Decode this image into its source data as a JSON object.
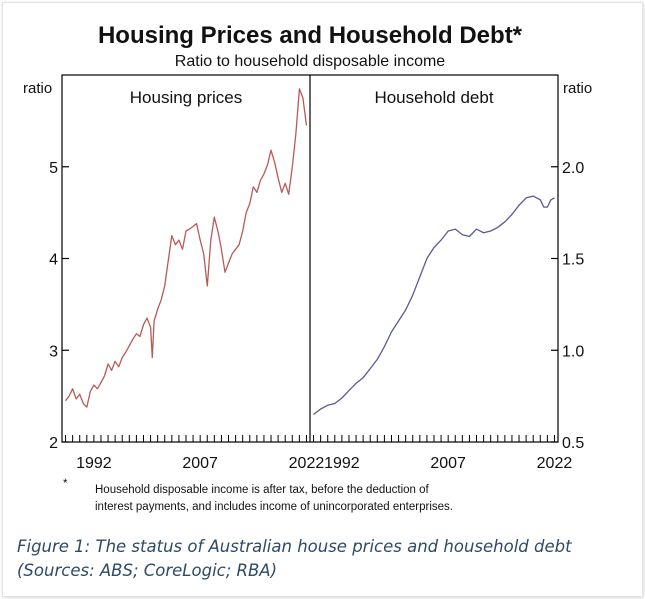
{
  "chart_data": {
    "type": "line",
    "title": "Housing Prices and Household Debt*",
    "subtitle": "Ratio to household disposable income",
    "axis_unit_left": "ratio",
    "axis_unit_right": "ratio",
    "grid": false,
    "panels": [
      {
        "label": "Housing prices",
        "ylim": [
          2,
          6
        ],
        "yticks": [
          "2",
          "3",
          "4",
          "5"
        ],
        "xlim": [
          1987.5,
          2022.5
        ],
        "xticks": [
          "1992",
          "2007",
          "2022"
        ],
        "series": [
          {
            "color": "#b85a58",
            "x": [
              1988.0,
              1988.5,
              1989.0,
              1989.5,
              1990.0,
              1990.5,
              1991.0,
              1991.5,
              1992.0,
              1992.5,
              1993.0,
              1993.5,
              1994.0,
              1994.5,
              1995.0,
              1995.5,
              1996.0,
              1996.5,
              1997.0,
              1997.5,
              1998.0,
              1998.5,
              1999.0,
              1999.5,
              2000.0,
              2000.25,
              2000.5,
              2001.0,
              2001.5,
              2002.0,
              2002.5,
              2003.0,
              2003.5,
              2004.0,
              2004.5,
              2005.0,
              2005.5,
              2006.0,
              2006.5,
              2007.0,
              2007.5,
              2008.0,
              2008.5,
              2009.0,
              2009.5,
              2010.0,
              2010.5,
              2011.0,
              2011.5,
              2012.0,
              2012.5,
              2013.0,
              2013.5,
              2014.0,
              2014.5,
              2015.0,
              2015.5,
              2016.0,
              2016.5,
              2017.0,
              2017.5,
              2018.0,
              2018.5,
              2019.0,
              2019.5,
              2020.0,
              2020.5,
              2021.0,
              2021.5,
              2022.0
            ],
            "y": [
              2.45,
              2.5,
              2.58,
              2.47,
              2.52,
              2.42,
              2.38,
              2.55,
              2.62,
              2.58,
              2.65,
              2.72,
              2.85,
              2.78,
              2.88,
              2.82,
              2.92,
              2.98,
              3.05,
              3.12,
              3.18,
              3.15,
              3.28,
              3.35,
              3.25,
              2.92,
              3.32,
              3.45,
              3.55,
              3.7,
              3.98,
              4.25,
              4.15,
              4.2,
              4.1,
              4.3,
              4.32,
              4.35,
              4.38,
              4.2,
              4.05,
              3.7,
              4.2,
              4.45,
              4.3,
              4.1,
              3.85,
              3.95,
              4.05,
              4.1,
              4.15,
              4.3,
              4.5,
              4.6,
              4.78,
              4.72,
              4.85,
              4.92,
              5.02,
              5.18,
              5.05,
              4.88,
              4.72,
              4.82,
              4.7,
              5.0,
              5.35,
              5.85,
              5.75,
              5.45
            ]
          }
        ]
      },
      {
        "label": "Household debt",
        "ylim": [
          0.5,
          2.5
        ],
        "yticks": [
          "0.5",
          "1.0",
          "1.5",
          "2.0"
        ],
        "xlim": [
          1987.5,
          2022.5
        ],
        "xticks": [
          "1992",
          "2007",
          "2022"
        ],
        "series": [
          {
            "color": "#5a5a96",
            "x": [
              1988.0,
              1989.0,
              1990.0,
              1991.0,
              1992.0,
              1993.0,
              1994.0,
              1995.0,
              1996.0,
              1997.0,
              1998.0,
              1999.0,
              2000.0,
              2001.0,
              2002.0,
              2003.0,
              2004.0,
              2005.0,
              2006.0,
              2007.0,
              2008.0,
              2009.0,
              2010.0,
              2011.0,
              2012.0,
              2013.0,
              2014.0,
              2015.0,
              2016.0,
              2017.0,
              2018.0,
              2019.0,
              2019.5,
              2020.0,
              2020.5,
              2021.0,
              2021.5,
              2022.0
            ],
            "y": [
              0.65,
              0.68,
              0.7,
              0.71,
              0.74,
              0.78,
              0.82,
              0.85,
              0.9,
              0.95,
              1.02,
              1.1,
              1.16,
              1.22,
              1.3,
              1.4,
              1.5,
              1.56,
              1.6,
              1.65,
              1.66,
              1.63,
              1.62,
              1.66,
              1.64,
              1.65,
              1.67,
              1.7,
              1.74,
              1.79,
              1.83,
              1.84,
              1.83,
              1.82,
              1.78,
              1.78,
              1.82,
              1.83
            ]
          }
        ]
      }
    ],
    "right_yticks": [
      "0.5",
      "1.0",
      "1.5",
      "2.0"
    ]
  },
  "footnote": {
    "marker": "*",
    "lines": [
      "Household disposable income is after tax, before the deduction of",
      "interest payments, and includes income of unincorporated enterprises."
    ]
  },
  "caption": {
    "lines": [
      "Figure 1: The status of Australian house prices and household debt",
      " (Sources: ABS; CoreLogic; RBA)"
    ],
    "color": "#2e4a66"
  }
}
